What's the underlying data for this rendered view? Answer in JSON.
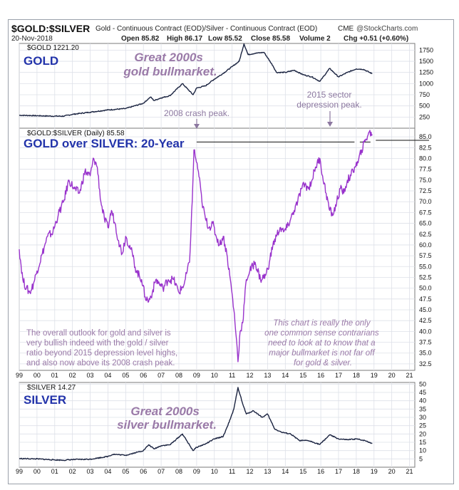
{
  "header": {
    "symbol": "$GOLD:$SILVER",
    "description": "Gold - Continuous Contract (EOD)/Silver - Continuous Contract (EOD)",
    "exchange": "CME",
    "watermark": "@StockCharts.com",
    "date": "20-Nov-2018",
    "open": "Open 85.82",
    "high": "High 86.17",
    "low": "Low 85.52",
    "close": "Close 85.58",
    "volume": "Volume 2",
    "change": "Chg +0.51 (+0.60%)"
  },
  "x_axis_labels": [
    "99",
    "00",
    "01",
    "02",
    "03",
    "04",
    "05",
    "06",
    "07",
    "08",
    "09",
    "10",
    "11",
    "12",
    "13",
    "14",
    "15",
    "16",
    "17",
    "18",
    "19",
    "20",
    "21"
  ],
  "colors": {
    "gold_line": "#1a2340",
    "ratio_line": "#9933cc",
    "annotation_purple": "#9a7aa8",
    "title_blue": "#2233aa",
    "arrow": "#8c78a0"
  },
  "chart_data": [
    {
      "type": "line",
      "legend": "$GOLD 1221.20",
      "panel_title": "GOLD",
      "annotation": "Great 2000s gold bullmarket.",
      "ylim": [
        0,
        1900
      ],
      "yticks": [
        "250",
        "500",
        "750",
        "1000",
        "1250",
        "1500",
        "1750"
      ],
      "series": [
        {
          "name": "$GOLD",
          "x": [
            1999.0,
            2000.0,
            2001.0,
            2001.5,
            2002.0,
            2003.0,
            2004.0,
            2005.0,
            2006.0,
            2006.4,
            2006.6,
            2007.0,
            2007.5,
            2008.2,
            2008.8,
            2009.0,
            2009.5,
            2010.0,
            2010.5,
            2011.0,
            2011.4,
            2011.67,
            2011.9,
            2012.3,
            2012.8,
            2013.3,
            2013.5,
            2014.0,
            2014.5,
            2015.0,
            2015.5,
            2015.95,
            2016.5,
            2017.0,
            2017.5,
            2018.0,
            2018.4,
            2018.9
          ],
          "y": [
            290,
            280,
            270,
            270,
            310,
            360,
            410,
            440,
            560,
            700,
            620,
            680,
            730,
            1000,
            750,
            900,
            950,
            1100,
            1230,
            1380,
            1500,
            1890,
            1650,
            1680,
            1700,
            1400,
            1250,
            1250,
            1300,
            1200,
            1150,
            1050,
            1340,
            1150,
            1250,
            1330,
            1320,
            1221
          ]
        }
      ]
    },
    {
      "type": "line",
      "legend": "$GOLD:$SILVER (Daily) 85.58",
      "panel_title": "GOLD over SILVER: 20-Year",
      "ylim": [
        31.0,
        87.0
      ],
      "yticks": [
        "32.5",
        "35.0",
        "37.5",
        "40.0",
        "42.5",
        "45.0",
        "47.5",
        "50.0",
        "52.5",
        "55.0",
        "57.5",
        "60.0",
        "62.5",
        "65.0",
        "67.5",
        "70.0",
        "72.5",
        "75.0",
        "77.5",
        "80.0",
        "82.5",
        "85.0"
      ],
      "annotations": {
        "crash_peak": "2008 crash peak.",
        "sector_peak_line1": "2015 sector",
        "sector_peak_line2": "depression peak.",
        "left_note": [
          "The overall outlook for gold and silver is",
          "very bullish indeed with the gold / silver",
          "ratio beyond 2015 depression level highs,",
          "and also now above its 2008 crash peak."
        ],
        "right_note": [
          "This chart is really the only",
          "one common sense contrarians",
          "need to look at to know that a",
          "major bullmarket is not far off",
          "for gold & silver."
        ]
      },
      "series": [
        {
          "name": "$GOLD:$SILVER",
          "x": [
            1999.0,
            1999.2,
            1999.4,
            1999.6,
            1999.8,
            2000.0,
            2000.3,
            2000.6,
            2000.9,
            2001.2,
            2001.5,
            2001.8,
            2002.1,
            2002.4,
            2002.7,
            2003.0,
            2003.2,
            2003.4,
            2003.6,
            2003.8,
            2004.0,
            2004.2,
            2004.4,
            2004.6,
            2004.8,
            2005.0,
            2005.3,
            2005.6,
            2005.9,
            2006.1,
            2006.3,
            2006.5,
            2006.7,
            2006.9,
            2007.1,
            2007.4,
            2007.7,
            2008.0,
            2008.3,
            2008.6,
            2008.75,
            2008.85,
            2008.95,
            2009.1,
            2009.3,
            2009.5,
            2009.7,
            2009.9,
            2010.1,
            2010.3,
            2010.5,
            2010.7,
            2010.9,
            2011.1,
            2011.25,
            2011.33,
            2011.45,
            2011.6,
            2011.8,
            2012.0,
            2012.3,
            2012.6,
            2012.9,
            2013.1,
            2013.3,
            2013.5,
            2013.7,
            2013.9,
            2014.1,
            2014.3,
            2014.5,
            2014.7,
            2014.9,
            2015.1,
            2015.3,
            2015.5,
            2015.7,
            2015.95,
            2016.1,
            2016.3,
            2016.5,
            2016.7,
            2016.9,
            2017.1,
            2017.3,
            2017.5,
            2017.7,
            2017.9,
            2018.1,
            2018.3,
            2018.5,
            2018.7,
            2018.9
          ],
          "y": [
            59,
            52,
            50,
            49,
            51,
            54,
            58,
            62,
            63,
            67,
            70,
            75,
            73,
            72,
            77,
            76,
            80,
            78,
            70,
            66,
            64,
            68,
            65,
            61,
            58,
            62,
            59,
            54,
            52,
            48,
            47,
            49,
            52,
            51,
            50,
            52,
            52,
            49,
            51,
            56,
            70,
            82,
            80,
            77,
            70,
            66,
            64,
            65,
            62,
            60,
            62,
            58,
            52,
            45,
            38,
            33,
            40,
            42,
            52,
            54,
            56,
            52,
            53,
            56,
            60,
            62,
            64,
            63,
            64,
            66,
            68,
            70,
            73,
            74,
            73,
            75,
            78,
            80,
            76,
            72,
            68,
            67,
            70,
            73,
            72,
            75,
            76,
            78,
            79,
            82,
            84,
            86,
            85.58
          ]
        }
      ],
      "reference_lines": [
        83.8,
        84.2
      ]
    },
    {
      "type": "line",
      "legend": "$SILVER 14.27",
      "panel_title": "SILVER",
      "annotation": "Great 2000s silver bullmarket.",
      "ylim": [
        0,
        51
      ],
      "yticks": [
        "5",
        "10",
        "15",
        "20",
        "25",
        "30",
        "35",
        "40",
        "45",
        "50"
      ],
      "series": [
        {
          "name": "$SILVER",
          "x": [
            1999.0,
            2000.0,
            2001.0,
            2001.5,
            2002.0,
            2003.0,
            2004.0,
            2004.3,
            2005.0,
            2006.0,
            2006.3,
            2006.6,
            2007.0,
            2007.5,
            2008.2,
            2008.8,
            2009.0,
            2009.5,
            2010.0,
            2010.5,
            2010.9,
            2011.1,
            2011.33,
            2011.6,
            2011.8,
            2012.2,
            2012.7,
            2013.0,
            2013.4,
            2013.8,
            2014.3,
            2014.8,
            2015.3,
            2015.95,
            2016.5,
            2017.0,
            2017.5,
            2018.0,
            2018.5,
            2018.9
          ],
          "y": [
            5.2,
            5.0,
            4.4,
            4.2,
            4.6,
            4.8,
            6.5,
            7.8,
            7.2,
            10,
            13.5,
            11,
            13,
            13.5,
            20,
            10,
            12,
            14,
            17,
            18.5,
            29,
            35,
            48,
            38,
            32,
            34,
            30,
            32,
            23,
            21,
            20,
            16,
            16,
            13.7,
            19.5,
            17,
            16.5,
            17,
            16,
            14.27
          ]
        }
      ]
    }
  ]
}
